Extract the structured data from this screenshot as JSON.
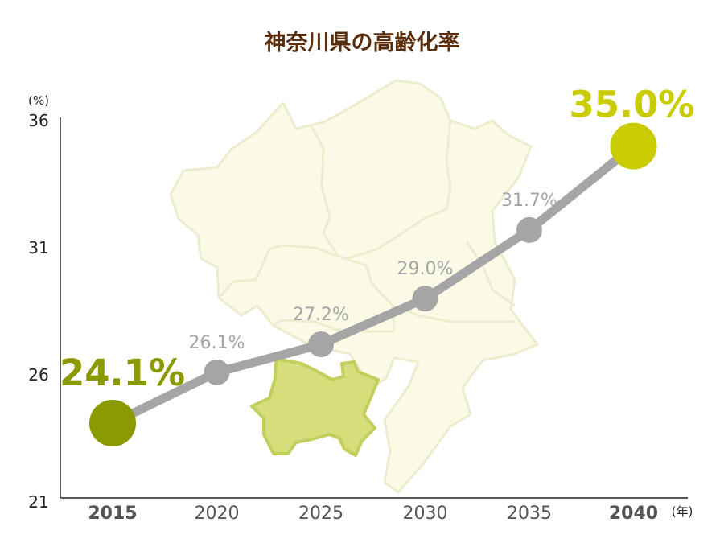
{
  "chart_data": {
    "type": "line",
    "title": "神奈川県の高齢化率",
    "y_unit": "(%)",
    "x_unit": "(年)",
    "categories": [
      "2015",
      "2020",
      "2025",
      "2030",
      "2035",
      "2040"
    ],
    "values": [
      24.1,
      26.1,
      27.2,
      29.0,
      31.7,
      35.0
    ],
    "data_labels": [
      "24.1%",
      "26.1%",
      "27.2%",
      "29.0%",
      "31.7%",
      "35.0%"
    ],
    "ylim": [
      21,
      36
    ],
    "y_ticks": [
      "21",
      "26",
      "31",
      "36"
    ],
    "grid": false,
    "legend": "none"
  },
  "colors": {
    "title": "#5a2d0c",
    "line": "#a5a5a5",
    "first_point": "#8a9a00",
    "last_point": "#c8cc00",
    "map_fill": "#fafae6",
    "map_stroke": "#ecedcf",
    "highlight_fill": "#d6de7c",
    "highlight_stroke": "#c3cf5d"
  },
  "decoration": {
    "background_map": "kanagawa-region-map",
    "highlighted_area": "yokohama-area"
  }
}
